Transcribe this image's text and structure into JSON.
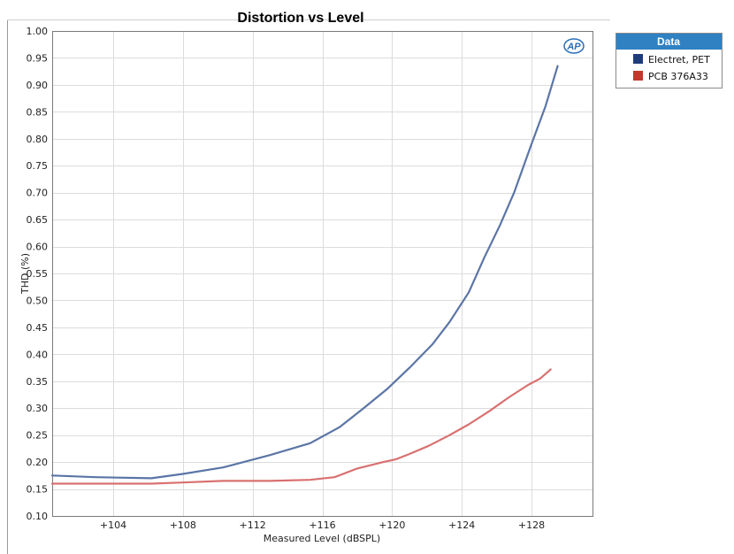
{
  "chart_data": {
    "type": "line",
    "title": "Distortion vs Level",
    "xlabel": "Measured Level (dBSPL)",
    "ylabel": "THD (%)",
    "xlim": [
      100.5,
      131.5
    ],
    "ylim": [
      0.1,
      1.0
    ],
    "x_ticks": [
      104,
      108,
      112,
      116,
      120,
      124,
      128
    ],
    "x_tick_labels": [
      "+104",
      "+108",
      "+112",
      "+116",
      "+120",
      "+124",
      "+128"
    ],
    "y_ticks": [
      0.1,
      0.15,
      0.2,
      0.25,
      0.3,
      0.35,
      0.4,
      0.45,
      0.5,
      0.55,
      0.6,
      0.65,
      0.7,
      0.75,
      0.8,
      0.85,
      0.9,
      0.95,
      1.0
    ],
    "y_tick_labels": [
      "0.10",
      "0.15",
      "0.20",
      "0.25",
      "0.30",
      "0.35",
      "0.40",
      "0.45",
      "0.50",
      "0.55",
      "0.60",
      "0.65",
      "0.70",
      "0.75",
      "0.80",
      "0.85",
      "0.90",
      "0.95",
      "1.00"
    ],
    "grid": true,
    "legend": {
      "title": "Data",
      "position": "right"
    },
    "series": [
      {
        "name": "Electret, PET",
        "color": "#5b75a6",
        "swatch": "#1f3c7a",
        "x": [
          100.5,
          103.0,
          106.2,
          108.0,
          110.3,
          113.0,
          115.3,
          117.0,
          118.3,
          119.7,
          121.0,
          122.3,
          123.3,
          124.4,
          125.3,
          126.2,
          127.0,
          128.0,
          128.8,
          129.5
        ],
        "y": [
          0.175,
          0.172,
          0.17,
          0.178,
          0.19,
          0.213,
          0.235,
          0.265,
          0.298,
          0.335,
          0.375,
          0.418,
          0.46,
          0.515,
          0.58,
          0.64,
          0.7,
          0.79,
          0.86,
          0.935
        ]
      },
      {
        "name": "PCB  376A33",
        "color": "#d97070",
        "swatch": "#c0392b",
        "x": [
          100.5,
          103.0,
          106.2,
          108.0,
          110.3,
          113.0,
          115.3,
          116.7,
          118.0,
          119.5,
          120.2,
          121.0,
          122.1,
          123.3,
          124.4,
          125.6,
          126.7,
          127.8,
          128.5,
          129.1
        ],
        "y": [
          0.16,
          0.16,
          0.16,
          0.162,
          0.165,
          0.165,
          0.167,
          0.172,
          0.188,
          0.2,
          0.205,
          0.215,
          0.23,
          0.25,
          0.27,
          0.295,
          0.32,
          0.343,
          0.355,
          0.372
        ]
      }
    ]
  },
  "logo": {
    "text": "AP"
  }
}
